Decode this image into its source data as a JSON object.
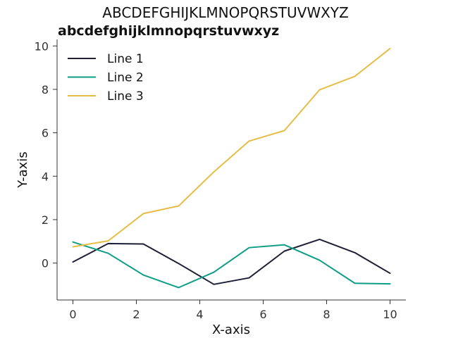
{
  "chart_data": {
    "type": "line",
    "title": "ABCDEFGHIJKLMNOPQRSTUVWXYZ",
    "subtitle": "abcdefghijklmnopqrstuvwxyz",
    "xlabel": "X-axis",
    "ylabel": "Y-axis",
    "xlim": [
      -0.5,
      10.5
    ],
    "ylim": [
      -1.7,
      10.3
    ],
    "xticks": [
      0,
      2,
      4,
      6,
      8,
      10
    ],
    "yticks": [
      0,
      2,
      4,
      6,
      8,
      10
    ],
    "grid": false,
    "legend_position": "top-left",
    "x": [
      0,
      1.111,
      2.222,
      3.333,
      4.444,
      5.556,
      6.667,
      7.778,
      8.889,
      10
    ],
    "series": [
      {
        "name": "Line 1",
        "color": "#1f1f36",
        "values": [
          0.05,
          0.9,
          0.88,
          -0.02,
          -0.98,
          -0.68,
          0.55,
          1.09,
          0.48,
          -0.47
        ]
      },
      {
        "name": "Line 2",
        "color": "#0e9e85",
        "values": [
          0.97,
          0.45,
          -0.55,
          -1.13,
          -0.42,
          0.71,
          0.84,
          0.13,
          -0.93,
          -0.96
        ]
      },
      {
        "name": "Line 3",
        "color": "#e6bd45",
        "values": [
          0.75,
          1.02,
          2.28,
          2.63,
          4.2,
          5.62,
          6.1,
          7.98,
          8.6,
          9.88
        ]
      }
    ]
  }
}
